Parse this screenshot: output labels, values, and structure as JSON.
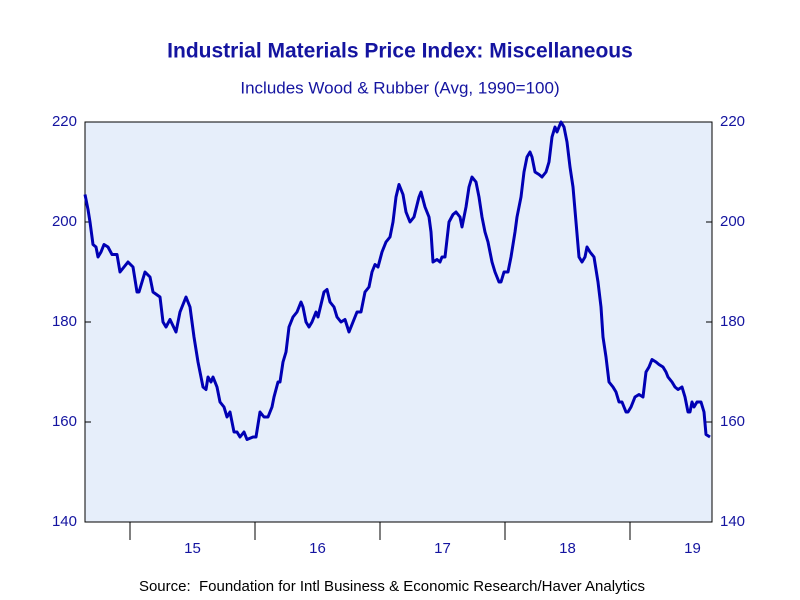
{
  "chart_data": {
    "type": "line",
    "title": "Industrial Materials Price Index: Miscellaneous",
    "subtitle": "Includes Wood & Rubber (Avg, 1990=100)",
    "source": "Source:  Foundation for Intl Business & Economic Research/Haver Analytics",
    "xlim": [
      2014.64,
      2019.656
    ],
    "xticks": [
      2015,
      2016,
      2017,
      2018,
      2019
    ],
    "xtick_labels": [
      {
        "value": 2015.5,
        "label": "15"
      },
      {
        "value": 2016.5,
        "label": "16"
      },
      {
        "value": 2017.5,
        "label": "17"
      },
      {
        "value": 2018.5,
        "label": "18"
      },
      {
        "value": 2019.5,
        "label": "19"
      }
    ],
    "ylim": [
      140,
      220
    ],
    "yticks": [
      140,
      160,
      180,
      200,
      220
    ],
    "mirror_y_axis": true,
    "grid": false,
    "background": "#e6eefa",
    "x": [
      2014.64,
      2014.664,
      2014.68,
      2014.704,
      2014.728,
      2014.744,
      2014.768,
      2014.792,
      2014.824,
      2014.856,
      2014.896,
      2014.92,
      2014.952,
      2014.984,
      2015.024,
      2015.056,
      2015.072,
      2015.12,
      2015.16,
      2015.184,
      2015.24,
      2015.264,
      2015.288,
      2015.32,
      2015.368,
      2015.4,
      2015.448,
      2015.48,
      2015.512,
      2015.544,
      2015.584,
      2015.608,
      2015.624,
      2015.648,
      2015.664,
      2015.696,
      2015.72,
      2015.752,
      2015.776,
      2015.8,
      2015.832,
      2015.856,
      2015.88,
      2015.912,
      2015.936,
      2015.984,
      2016.008,
      2016.04,
      2016.072,
      2016.104,
      2016.136,
      2016.152,
      2016.184,
      2016.2,
      2016.224,
      2016.248,
      2016.272,
      2016.304,
      2016.336,
      2016.368,
      2016.384,
      2016.408,
      2016.432,
      2016.456,
      2016.488,
      2016.504,
      2016.552,
      2016.576,
      2016.6,
      2016.632,
      2016.656,
      2016.688,
      2016.72,
      2016.752,
      2016.784,
      2016.816,
      2016.848,
      2016.88,
      2016.912,
      2016.936,
      2016.96,
      2016.984,
      2017.016,
      2017.048,
      2017.08,
      2017.104,
      2017.128,
      2017.152,
      2017.184,
      2017.208,
      2017.24,
      2017.272,
      2017.312,
      2017.328,
      2017.36,
      2017.392,
      2017.408,
      2017.424,
      2017.456,
      2017.48,
      2017.496,
      2017.52,
      2017.552,
      2017.584,
      2017.608,
      2017.64,
      2017.656,
      2017.688,
      2017.712,
      2017.736,
      2017.768,
      2017.792,
      2017.816,
      2017.84,
      2017.864,
      2017.896,
      2017.92,
      2017.952,
      2017.968,
      2017.992,
      2018.024,
      2018.048,
      2018.08,
      2018.096,
      2018.128,
      2018.152,
      2018.176,
      2018.2,
      2018.216,
      2018.24,
      2018.272,
      2018.296,
      2018.328,
      2018.352,
      2018.376,
      2018.4,
      2018.416,
      2018.448,
      2018.472,
      2018.496,
      2018.52,
      2018.544,
      2018.568,
      2018.592,
      2018.616,
      2018.64,
      2018.656,
      2018.68,
      2018.712,
      2018.744,
      2018.768,
      2018.784,
      2018.808,
      2018.832,
      2018.864,
      2018.888,
      2018.912,
      2018.936,
      2018.968,
      2018.984,
      2019.008,
      2019.04,
      2019.072,
      2019.104,
      2019.128,
      2019.152,
      2019.176,
      2019.208,
      2019.232,
      2019.264,
      2019.288,
      2019.304,
      2019.336,
      2019.36,
      2019.384,
      2019.416,
      2019.44,
      2019.464,
      2019.48,
      2019.496,
      2019.512,
      2019.536,
      2019.568,
      2019.592,
      2019.608,
      2019.64
    ],
    "series": [
      {
        "color": "#0000b4",
        "values": [
          205.5,
          202.5,
          200,
          195.5,
          195,
          193,
          194,
          195.5,
          195,
          193.5,
          193.5,
          190,
          191,
          192,
          191,
          186,
          186,
          190,
          189,
          186,
          185,
          180,
          179,
          180.5,
          178,
          182,
          185,
          183,
          177,
          172,
          167,
          166.5,
          169,
          168,
          169,
          167,
          164,
          163,
          161,
          162,
          158,
          158,
          157,
          158,
          156.5,
          157,
          157,
          162,
          161,
          161,
          163,
          165,
          168,
          168,
          172,
          174,
          179,
          181,
          182,
          184,
          183,
          180,
          179,
          180,
          182,
          181,
          186,
          186.5,
          184,
          183,
          181,
          180,
          180.5,
          178,
          180,
          182,
          182,
          186,
          187,
          190,
          191.5,
          191,
          194,
          196,
          197,
          200,
          205,
          207.5,
          205.5,
          202,
          200,
          201,
          205,
          206,
          203,
          201,
          198,
          192,
          192.5,
          192,
          193,
          193,
          200,
          201.5,
          202,
          201,
          199,
          203,
          207,
          209,
          208,
          205,
          201,
          198,
          196,
          192,
          190,
          188,
          188,
          190,
          190,
          193,
          198,
          201,
          205,
          210,
          213,
          214,
          213,
          210,
          209.5,
          209,
          210,
          212,
          217,
          219,
          218,
          220,
          219,
          216,
          211,
          207,
          200,
          193,
          192,
          193,
          195,
          194,
          193,
          188,
          183,
          177,
          173,
          168,
          167,
          166,
          164,
          164,
          162,
          162,
          163,
          165,
          165.5,
          165,
          170,
          171,
          172.5,
          172,
          171.5,
          171,
          170,
          169,
          168,
          167,
          166.5,
          167,
          165,
          162,
          162,
          164,
          163,
          164,
          164,
          162,
          157.5,
          157
        ]
      }
    ]
  }
}
